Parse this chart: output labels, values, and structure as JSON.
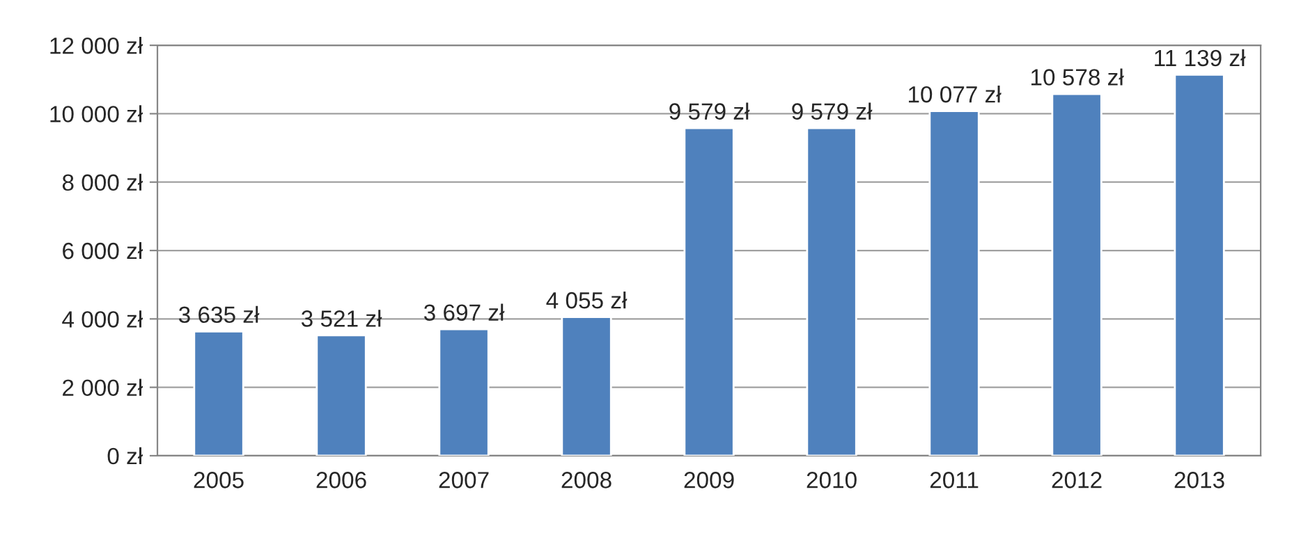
{
  "chart_data": {
    "type": "bar",
    "categories": [
      "2005",
      "2006",
      "2007",
      "2008",
      "2009",
      "2010",
      "2011",
      "2012",
      "2013"
    ],
    "values": [
      3635,
      3521,
      3697,
      4055,
      9579,
      9579,
      10077,
      10578,
      11139
    ],
    "value_labels": [
      "3 635 zł",
      "3 521 zł",
      "3 697 zł",
      "4 055 zł",
      "9 579 zł",
      "9 579 zł",
      "10 077 zł",
      "10 578 zł",
      "11 139 zł"
    ],
    "color": "#4f81bd",
    "ylim": [
      0,
      12000
    ],
    "yticks": [
      {
        "value": 0,
        "label": "0 zł"
      },
      {
        "value": 2000,
        "label": "2 000 zł"
      },
      {
        "value": 4000,
        "label": "4 000 zł"
      },
      {
        "value": 6000,
        "label": "6 000 zł"
      },
      {
        "value": 8000,
        "label": "8 000 zł"
      },
      {
        "value": 10000,
        "label": "10 000 zł"
      },
      {
        "value": 12000,
        "label": "12 000 zł"
      }
    ],
    "grid": "y",
    "legend": false
  }
}
